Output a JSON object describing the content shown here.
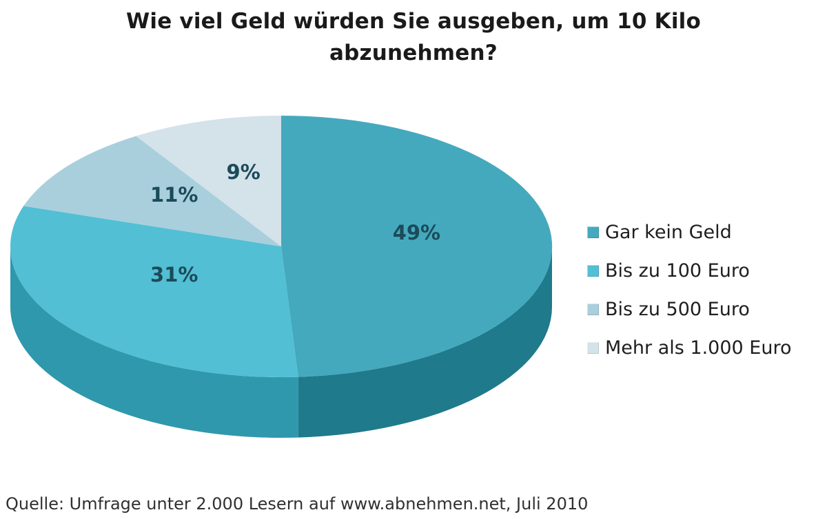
{
  "title": {
    "line1": "Wie viel Geld würden Sie ausgeben, um 10 Kilo",
    "line2": "abzunehmen?"
  },
  "source": "Quelle: Umfrage unter 2.000 Lesern auf www.abnehmen.net, Juli 2010",
  "chart_data": {
    "type": "pie",
    "style": "3d",
    "title": "Wie viel Geld würden Sie ausgeben, um 10 Kilo abzunehmen?",
    "unit": "%",
    "start_angle_deg": 0,
    "direction": "clockwise",
    "categories": [
      "Gar kein Geld",
      "Bis zu 100 Euro",
      "Bis zu 500 Euro",
      "Mehr als 1.000 Euro"
    ],
    "values": [
      49,
      31,
      11,
      9
    ],
    "labels": [
      "49%",
      "31%",
      "11%",
      "9%"
    ],
    "colors": [
      "#45A9BE",
      "#52BFD4",
      "#A9CFDC",
      "#D4E2E9"
    ],
    "side_colors": [
      "#1F7A8C",
      "#2F98AC",
      null,
      null
    ],
    "label_color": "#1B4B5A",
    "legend_position": "right",
    "legend_marker": "square",
    "source": "Quelle: Umfrage unter 2.000 Lesern auf www.abnehmen.net, Juli 2010"
  },
  "legend": {
    "items": [
      {
        "label": "Gar kein Geld"
      },
      {
        "label": "Bis zu 100 Euro"
      },
      {
        "label": "Bis zu 500 Euro"
      },
      {
        "label": "Mehr als 1.000 Euro"
      }
    ]
  }
}
